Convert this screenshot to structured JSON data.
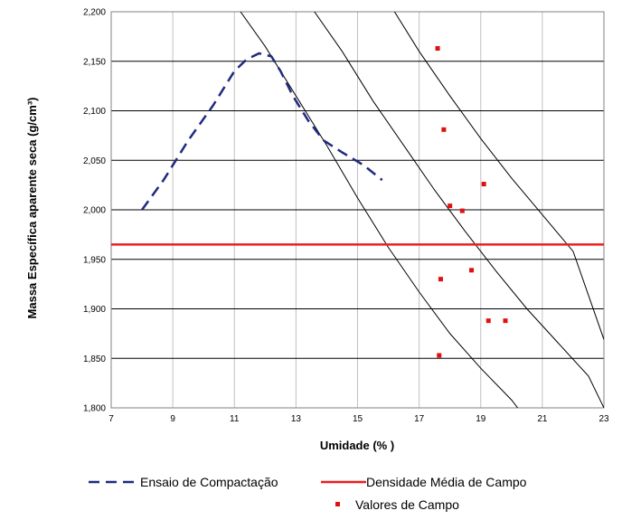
{
  "chart_data": {
    "type": "scatter",
    "xlabel": "Umidade (% )",
    "ylabel": "Massa Específica aparente seca (g/cm³)",
    "xlim": [
      7,
      23
    ],
    "ylim": [
      1.8,
      2.2
    ],
    "x_ticks": [
      7,
      9,
      11,
      13,
      15,
      17,
      19,
      21,
      23
    ],
    "x_tick_labels": [
      "7",
      "9",
      "11",
      "13",
      "15",
      "17",
      "19",
      "21",
      "23"
    ],
    "y_ticks": [
      1.8,
      1.85,
      1.9,
      1.95,
      2.0,
      2.05,
      2.1,
      2.15,
      2.2
    ],
    "y_tick_labels": [
      "1,800",
      "1,850",
      "1,900",
      "1,950",
      "2,000",
      "2,050",
      "2,100",
      "2,150",
      "2,200"
    ],
    "grid": true,
    "legend_position": "bottom",
    "series": [
      {
        "name": "Ensaio de Compactação",
        "kind": "line-dashed",
        "color": "#1f2a80",
        "points": [
          [
            8.0,
            2.0
          ],
          [
            8.7,
            2.03
          ],
          [
            9.5,
            2.07
          ],
          [
            10.3,
            2.105
          ],
          [
            11.0,
            2.14
          ],
          [
            11.4,
            2.152
          ],
          [
            11.8,
            2.158
          ],
          [
            12.2,
            2.155
          ],
          [
            12.5,
            2.14
          ],
          [
            12.9,
            2.115
          ],
          [
            13.4,
            2.09
          ],
          [
            13.9,
            2.07
          ],
          [
            14.5,
            2.058
          ],
          [
            15.2,
            2.045
          ],
          [
            15.8,
            2.03
          ]
        ]
      },
      {
        "name": "Densidade Média de Campo",
        "kind": "hline",
        "color": "#e82020",
        "y": 1.965
      },
      {
        "name": "Valores de Campo",
        "kind": "points",
        "color": "#e01010",
        "points": [
          [
            17.6,
            2.163
          ],
          [
            17.8,
            2.081
          ],
          [
            19.1,
            2.026
          ],
          [
            18.0,
            2.004
          ],
          [
            18.4,
            1.999
          ],
          [
            18.7,
            1.939
          ],
          [
            17.7,
            1.93
          ],
          [
            19.25,
            1.888
          ],
          [
            19.8,
            1.888
          ],
          [
            17.65,
            1.853
          ]
        ]
      }
    ],
    "saturation_curves": [
      {
        "color": "#000000",
        "points": [
          [
            11.2,
            2.2
          ],
          [
            12.0,
            2.165
          ],
          [
            13.0,
            2.115
          ],
          [
            14.0,
            2.065
          ],
          [
            15.0,
            2.012
          ],
          [
            16.0,
            1.962
          ],
          [
            17.0,
            1.917
          ],
          [
            18.0,
            1.875
          ],
          [
            19.0,
            1.84
          ],
          [
            20.0,
            1.808
          ],
          [
            20.2,
            1.8
          ]
        ]
      },
      {
        "color": "#000000",
        "points": [
          [
            13.6,
            2.2
          ],
          [
            14.5,
            2.16
          ],
          [
            15.5,
            2.11
          ],
          [
            16.5,
            2.065
          ],
          [
            17.5,
            2.02
          ],
          [
            18.5,
            1.978
          ],
          [
            19.5,
            1.938
          ],
          [
            20.5,
            1.9
          ],
          [
            21.5,
            1.866
          ],
          [
            22.5,
            1.832
          ],
          [
            23.0,
            1.8
          ]
        ]
      },
      {
        "color": "#000000",
        "points": [
          [
            16.2,
            2.2
          ],
          [
            17.0,
            2.16
          ],
          [
            18.0,
            2.115
          ],
          [
            19.0,
            2.072
          ],
          [
            20.0,
            2.032
          ],
          [
            21.0,
            1.995
          ],
          [
            22.0,
            1.958
          ],
          [
            23.0,
            1.869
          ]
        ]
      }
    ]
  }
}
